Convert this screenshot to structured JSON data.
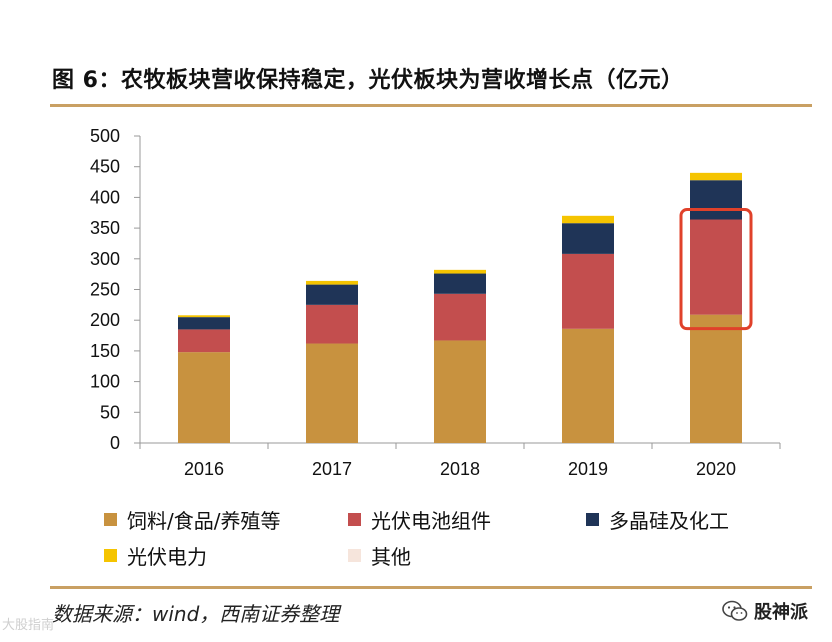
{
  "title": "图 6：农牧板块营收保持稳定，光伏板块为营收增长点（亿元）",
  "source": "数据来源：wind，西南证券整理",
  "brand": {
    "name": "股神派",
    "icon": "wechat-icon"
  },
  "watermark": "大股指南",
  "colors": {
    "rule": "#c9a063",
    "feed": "#c8923f",
    "pv_cell": "#c34e4e",
    "polysilicon": "#1f3457",
    "pv_power": "#f5c400",
    "other": "#f6e5dc",
    "highlight": "#e0412a"
  },
  "chart_data": {
    "type": "bar",
    "stacked": true,
    "categories": [
      "2016",
      "2017",
      "2018",
      "2019",
      "2020"
    ],
    "y_ticks": [
      "0",
      "50",
      "100",
      "150",
      "200",
      "250",
      "300",
      "350",
      "400",
      "450",
      "500"
    ],
    "ylim": [
      0,
      500
    ],
    "title": "",
    "xlabel": "",
    "ylabel": "",
    "grid": false,
    "legend_position": "bottom",
    "highlight": {
      "category": "2020",
      "series": "光伏电池组件"
    },
    "series": [
      {
        "name": "饲料/食品/养殖等",
        "color": "#c8923f",
        "values": [
          148,
          162,
          167,
          186,
          209
        ]
      },
      {
        "name": "光伏电池组件",
        "color": "#c34e4e",
        "values": [
          37,
          63,
          76,
          122,
          155
        ]
      },
      {
        "name": "多晶硅及化工",
        "color": "#1f3457",
        "values": [
          20,
          33,
          33,
          50,
          64
        ]
      },
      {
        "name": "光伏电力",
        "color": "#f5c400",
        "values": [
          3,
          6,
          6,
          12,
          12
        ]
      },
      {
        "name": "其他",
        "color": "#f6e5dc",
        "values": [
          0,
          0,
          0,
          0,
          0
        ]
      }
    ]
  }
}
